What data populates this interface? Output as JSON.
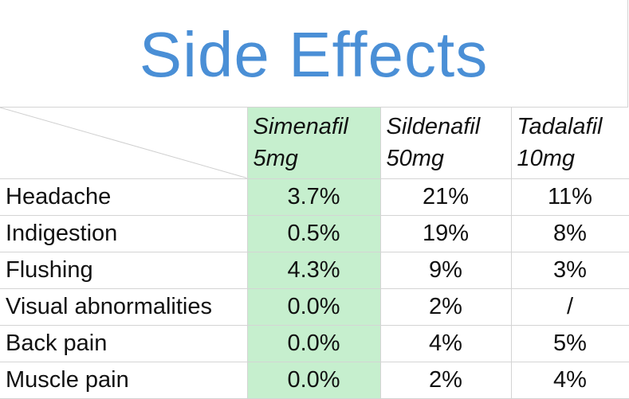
{
  "title": "Side Effects",
  "colors": {
    "title": "#4a8fd6",
    "highlight_column": "#c6efce",
    "grid_line": "#d4d4d4"
  },
  "table": {
    "columns": [
      {
        "name": "Simenafil",
        "dose": "5mg"
      },
      {
        "name": "Sildenafil",
        "dose": "50mg"
      },
      {
        "name": "Tadalafil",
        "dose": "10mg"
      }
    ],
    "rows": [
      {
        "label": "Headache",
        "values": [
          "3.7%",
          "21%",
          "11%"
        ]
      },
      {
        "label": "Indigestion",
        "values": [
          "0.5%",
          "19%",
          "8%"
        ]
      },
      {
        "label": "Flushing",
        "values": [
          "4.3%",
          "9%",
          "3%"
        ]
      },
      {
        "label": "Visual abnormalities",
        "values": [
          "0.0%",
          "2%",
          "/"
        ]
      },
      {
        "label": "Back pain",
        "values": [
          "0.0%",
          "4%",
          "5%"
        ]
      },
      {
        "label": "Muscle pain",
        "values": [
          "0.0%",
          "2%",
          "4%"
        ]
      }
    ]
  }
}
